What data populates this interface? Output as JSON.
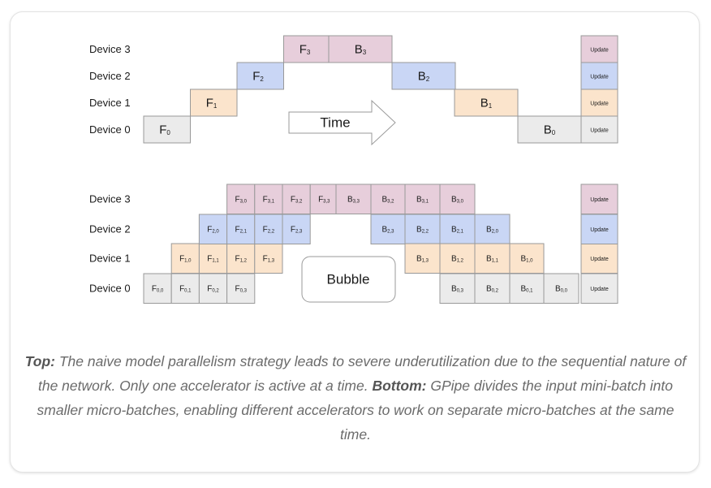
{
  "colors": {
    "d0": "#ebebeb",
    "d1": "#fbe4cc",
    "d2": "#c9d6f5",
    "d3": "#e7cedb",
    "stroke": "#999999"
  },
  "top": {
    "device_labels": [
      "Device 3",
      "Device 2",
      "Device 1",
      "Device 0"
    ],
    "forward": [
      {
        "dev": 0,
        "main": "F",
        "sub": "0"
      },
      {
        "dev": 1,
        "main": "F",
        "sub": "1"
      },
      {
        "dev": 2,
        "main": "F",
        "sub": "2"
      },
      {
        "dev": 3,
        "main": "F",
        "sub": "3"
      }
    ],
    "backward": [
      {
        "dev": 3,
        "main": "B",
        "sub": "3"
      },
      {
        "dev": 2,
        "main": "B",
        "sub": "2"
      },
      {
        "dev": 1,
        "main": "B",
        "sub": "1"
      },
      {
        "dev": 0,
        "main": "B",
        "sub": "0"
      }
    ],
    "update_label": "Update",
    "arrow_label": "Time"
  },
  "bottom": {
    "device_labels": [
      "Device 3",
      "Device 2",
      "Device 1",
      "Device 0"
    ],
    "forward": [
      [
        "F",
        "0,0"
      ],
      [
        "F",
        "0,1"
      ],
      [
        "F",
        "0,2"
      ],
      [
        "F",
        "0,3"
      ],
      [
        "F",
        "1,0"
      ],
      [
        "F",
        "1,1"
      ],
      [
        "F",
        "1,2"
      ],
      [
        "F",
        "1,3"
      ],
      [
        "F",
        "2,0"
      ],
      [
        "F",
        "2,1"
      ],
      [
        "F",
        "2,2"
      ],
      [
        "F",
        "2,3"
      ],
      [
        "F",
        "3,0"
      ],
      [
        "F",
        "3,1"
      ],
      [
        "F",
        "3,2"
      ],
      [
        "F",
        "3,3"
      ]
    ],
    "backward": [
      [
        "B",
        "3,3"
      ],
      [
        "B",
        "3,2"
      ],
      [
        "B",
        "3,1"
      ],
      [
        "B",
        "3,0"
      ],
      [
        "B",
        "2,3"
      ],
      [
        "B",
        "2,2"
      ],
      [
        "B",
        "2,1"
      ],
      [
        "B",
        "2,0"
      ],
      [
        "B",
        "1,3"
      ],
      [
        "B",
        "1,2"
      ],
      [
        "B",
        "1,1"
      ],
      [
        "B",
        "1,0"
      ],
      [
        "B",
        "0,3"
      ],
      [
        "B",
        "0,2"
      ],
      [
        "B",
        "0,1"
      ],
      [
        "B",
        "0,0"
      ]
    ],
    "update_label": "Update",
    "bubble_label": "Bubble"
  },
  "caption": {
    "top_label": "Top:",
    "top_text": " The naive model parallelism strategy leads to severe underutilization due to the sequential nature of the network. Only one accelerator is active at a time. ",
    "bottom_label": "Bottom:",
    "bottom_text": " GPipe divides the input mini-batch into smaller micro-batches, enabling different accelerators to work on separate micro-batches at the same time."
  }
}
